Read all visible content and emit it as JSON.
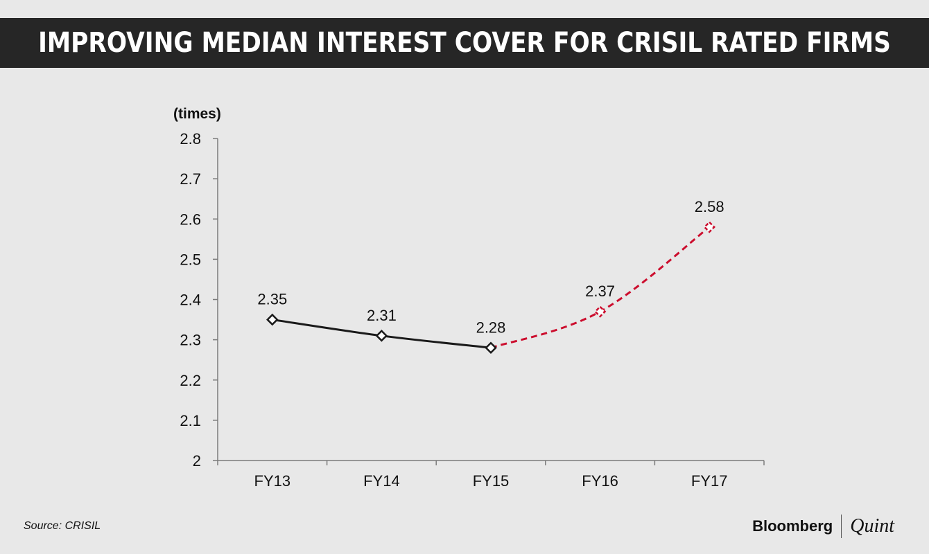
{
  "header": {
    "title": "IMPROVING MEDIAN INTEREST COVER FOR CRISIL RATED FIRMS"
  },
  "footer": {
    "source": "Source: CRISIL",
    "brand_primary": "Bloomberg",
    "brand_secondary": "Quint"
  },
  "chart_data": {
    "type": "line",
    "title": "IMPROVING MEDIAN INTEREST COVER FOR CRISIL RATED FIRMS",
    "ylabel": "(times)",
    "xlabel": "",
    "categories": [
      "FY13",
      "FY14",
      "FY15",
      "FY16",
      "FY17"
    ],
    "ylim": [
      2,
      2.8
    ],
    "yticks": [
      "2",
      "2.1",
      "2.2",
      "2.3",
      "2.4",
      "2.5",
      "2.6",
      "2.7",
      "2.8"
    ],
    "grid": false,
    "series": [
      {
        "values": [
          2.35,
          2.31,
          2.28,
          null,
          null
        ],
        "color": "#1a1a1a",
        "style": "solid"
      },
      {
        "values": [
          null,
          null,
          2.28,
          2.37,
          2.58
        ],
        "color": "#cc0e2e",
        "style": "dashed"
      }
    ],
    "data_labels": [
      "2.35",
      "2.31",
      "2.28",
      "2.37",
      "2.58"
    ]
  }
}
